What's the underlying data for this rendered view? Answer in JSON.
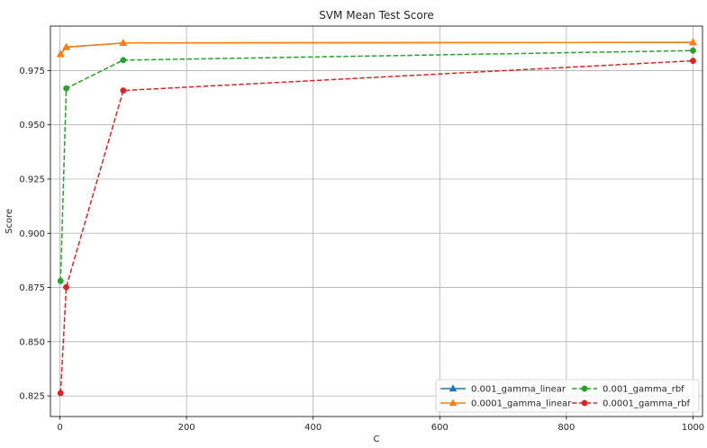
{
  "chart_data": {
    "type": "line",
    "title": "SVM Mean Test Score",
    "xlabel": "C",
    "ylabel": "Score",
    "xlim": [
      -15,
      1015
    ],
    "ylim": [
      0.8155,
      0.9955
    ],
    "xticks": [
      0,
      200,
      400,
      600,
      800,
      1000
    ],
    "yticks": [
      0.825,
      0.85,
      0.875,
      0.9,
      0.925,
      0.95,
      0.975
    ],
    "xtick_labels": [
      "0",
      "200",
      "400",
      "600",
      "800",
      "1000"
    ],
    "ytick_labels": [
      "0.825",
      "0.850",
      "0.875",
      "0.900",
      "0.925",
      "0.950",
      "0.975"
    ],
    "grid": true,
    "legend_placement": "lower-right",
    "legend_columns": 2,
    "series": [
      {
        "name": "0.001_gamma_linear",
        "x": [
          1,
          10,
          100,
          1000
        ],
        "values": [
          0.9825,
          0.9858,
          0.9877,
          0.988
        ],
        "color": "#1f77b4",
        "linestyle": "solid",
        "marker": "triangle"
      },
      {
        "name": "0.0001_gamma_linear",
        "x": [
          1,
          10,
          100,
          1000
        ],
        "values": [
          0.9825,
          0.9858,
          0.9877,
          0.988
        ],
        "color": "#ff7f0e",
        "linestyle": "solid",
        "marker": "triangle"
      },
      {
        "name": "0.001_gamma_rbf",
        "x": [
          1,
          10,
          100,
          1000
        ],
        "values": [
          0.878,
          0.9668,
          0.9798,
          0.9842
        ],
        "color": "#2ca02c",
        "linestyle": "dashed",
        "marker": "circle"
      },
      {
        "name": "0.0001_gamma_rbf",
        "x": [
          1,
          10,
          100,
          1000
        ],
        "values": [
          0.8263,
          0.8751,
          0.9658,
          0.9795
        ],
        "color": "#d62728",
        "linestyle": "dashed",
        "marker": "circle"
      }
    ]
  },
  "colors": {
    "grid": "#b0b0b0",
    "axis": "#000000",
    "text": "#262626",
    "legend_border": "#cccccc"
  }
}
